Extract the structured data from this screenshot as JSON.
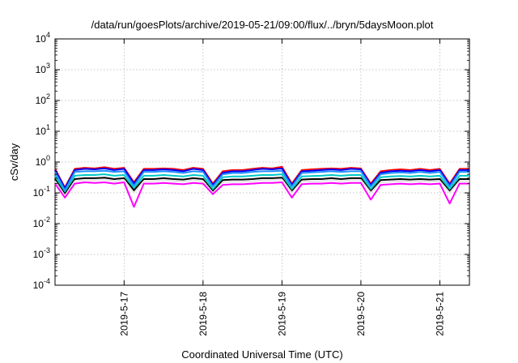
{
  "chart_data": {
    "type": "line",
    "title": "/data/run/goesPlots/archive/2019-05-21/09:00/flux/../bryn/5daysMoon.plot",
    "xlabel": "Coordinated Universal Time (UTC)",
    "ylabel": "cSv/day",
    "yscale": "log",
    "ylim": [
      0.0001,
      10000
    ],
    "xlim": [
      "2019-05-16 03:00",
      "2019-05-21 09:00"
    ],
    "grid": true,
    "y_ticks": [
      {
        "value": 0.0001,
        "base": "10",
        "exp": "-4"
      },
      {
        "value": 0.001,
        "base": "10",
        "exp": "-3"
      },
      {
        "value": 0.01,
        "base": "10",
        "exp": "-2"
      },
      {
        "value": 0.1,
        "base": "10",
        "exp": "-1"
      },
      {
        "value": 1,
        "base": "10",
        "exp": "0"
      },
      {
        "value": 10,
        "base": "10",
        "exp": "1"
      },
      {
        "value": 100,
        "base": "10",
        "exp": "2"
      },
      {
        "value": 1000,
        "base": "10",
        "exp": "3"
      },
      {
        "value": 10000,
        "base": "10",
        "exp": "4"
      }
    ],
    "x_ticks": [
      {
        "value": "2019-05-17",
        "label": "2019-5-17"
      },
      {
        "value": "2019-05-18",
        "label": "2019-5-18"
      },
      {
        "value": "2019-05-19",
        "label": "2019-5-19"
      },
      {
        "value": "2019-05-20",
        "label": "2019-5-20"
      },
      {
        "value": "2019-05-21",
        "label": "2019-5-21"
      }
    ],
    "x": [
      "2019-05-16 03:00",
      "2019-05-16 06:00",
      "2019-05-16 09:00",
      "2019-05-16 12:00",
      "2019-05-16 15:00",
      "2019-05-16 18:00",
      "2019-05-16 21:00",
      "2019-05-17 00:00",
      "2019-05-17 03:00",
      "2019-05-17 06:00",
      "2019-05-17 09:00",
      "2019-05-17 12:00",
      "2019-05-17 15:00",
      "2019-05-17 18:00",
      "2019-05-17 21:00",
      "2019-05-18 00:00",
      "2019-05-18 03:00",
      "2019-05-18 06:00",
      "2019-05-18 09:00",
      "2019-05-18 12:00",
      "2019-05-18 15:00",
      "2019-05-18 18:00",
      "2019-05-18 21:00",
      "2019-05-19 00:00",
      "2019-05-19 03:00",
      "2019-05-19 06:00",
      "2019-05-19 09:00",
      "2019-05-19 12:00",
      "2019-05-19 15:00",
      "2019-05-19 18:00",
      "2019-05-19 21:00",
      "2019-05-20 00:00",
      "2019-05-20 03:00",
      "2019-05-20 06:00",
      "2019-05-20 09:00",
      "2019-05-20 12:00",
      "2019-05-20 15:00",
      "2019-05-20 18:00",
      "2019-05-20 21:00",
      "2019-05-21 00:00",
      "2019-05-21 03:00",
      "2019-05-21 06:00",
      "2019-05-21 09:00"
    ],
    "series": [
      {
        "color": "#ff0000",
        "values": [
          0.6,
          0.15,
          0.6,
          0.65,
          0.62,
          0.68,
          0.6,
          0.65,
          0.22,
          0.6,
          0.6,
          0.62,
          0.6,
          0.55,
          0.65,
          0.6,
          0.2,
          0.5,
          0.55,
          0.55,
          0.6,
          0.65,
          0.62,
          0.7,
          0.2,
          0.55,
          0.58,
          0.6,
          0.62,
          0.6,
          0.65,
          0.62,
          0.2,
          0.5,
          0.55,
          0.58,
          0.55,
          0.6,
          0.55,
          0.6,
          0.2,
          0.6,
          0.6
        ]
      },
      {
        "color": "#0000ff",
        "values": [
          0.55,
          0.14,
          0.55,
          0.6,
          0.58,
          0.62,
          0.55,
          0.6,
          0.2,
          0.55,
          0.55,
          0.58,
          0.55,
          0.5,
          0.6,
          0.55,
          0.18,
          0.45,
          0.5,
          0.5,
          0.55,
          0.6,
          0.58,
          0.62,
          0.18,
          0.5,
          0.52,
          0.55,
          0.58,
          0.55,
          0.6,
          0.58,
          0.18,
          0.45,
          0.5,
          0.52,
          0.5,
          0.55,
          0.5,
          0.55,
          0.18,
          0.55,
          0.55
        ]
      },
      {
        "color": "#1e90ff",
        "values": [
          0.48,
          0.12,
          0.48,
          0.5,
          0.5,
          0.52,
          0.48,
          0.5,
          0.17,
          0.48,
          0.48,
          0.5,
          0.48,
          0.44,
          0.5,
          0.48,
          0.16,
          0.4,
          0.44,
          0.44,
          0.48,
          0.5,
          0.5,
          0.52,
          0.16,
          0.44,
          0.46,
          0.48,
          0.5,
          0.48,
          0.5,
          0.5,
          0.16,
          0.4,
          0.44,
          0.46,
          0.44,
          0.48,
          0.44,
          0.48,
          0.16,
          0.48,
          0.48
        ]
      },
      {
        "color": "#00c8c8",
        "values": [
          0.36,
          0.1,
          0.36,
          0.38,
          0.38,
          0.4,
          0.36,
          0.38,
          0.14,
          0.36,
          0.36,
          0.38,
          0.36,
          0.34,
          0.38,
          0.36,
          0.13,
          0.32,
          0.34,
          0.34,
          0.36,
          0.38,
          0.38,
          0.4,
          0.13,
          0.34,
          0.35,
          0.36,
          0.38,
          0.36,
          0.38,
          0.38,
          0.13,
          0.32,
          0.34,
          0.35,
          0.34,
          0.36,
          0.34,
          0.36,
          0.13,
          0.36,
          0.36
        ]
      },
      {
        "color": "#000000",
        "values": [
          0.28,
          0.09,
          0.28,
          0.3,
          0.3,
          0.31,
          0.28,
          0.3,
          0.12,
          0.28,
          0.28,
          0.3,
          0.28,
          0.27,
          0.3,
          0.28,
          0.11,
          0.26,
          0.27,
          0.27,
          0.28,
          0.3,
          0.3,
          0.31,
          0.11,
          0.27,
          0.28,
          0.28,
          0.3,
          0.28,
          0.3,
          0.3,
          0.11,
          0.26,
          0.27,
          0.28,
          0.27,
          0.28,
          0.27,
          0.28,
          0.11,
          0.28,
          0.28
        ]
      },
      {
        "color": "#e5e5e5",
        "values": [
          0.24,
          0.08,
          0.24,
          0.26,
          0.26,
          0.27,
          0.24,
          0.26,
          0.1,
          0.24,
          0.24,
          0.26,
          0.24,
          0.23,
          0.26,
          0.24,
          0.1,
          0.22,
          0.23,
          0.23,
          0.24,
          0.26,
          0.26,
          0.27,
          0.1,
          0.23,
          0.24,
          0.24,
          0.26,
          0.24,
          0.26,
          0.26,
          0.1,
          0.22,
          0.23,
          0.24,
          0.23,
          0.24,
          0.23,
          0.24,
          0.1,
          0.24,
          0.24
        ]
      },
      {
        "color": "#ff00ff",
        "values": [
          0.2,
          0.07,
          0.2,
          0.22,
          0.21,
          0.22,
          0.2,
          0.22,
          0.035,
          0.2,
          0.2,
          0.21,
          0.2,
          0.19,
          0.21,
          0.2,
          0.09,
          0.18,
          0.19,
          0.19,
          0.2,
          0.21,
          0.21,
          0.22,
          0.07,
          0.19,
          0.2,
          0.2,
          0.21,
          0.2,
          0.21,
          0.21,
          0.06,
          0.18,
          0.19,
          0.2,
          0.19,
          0.2,
          0.19,
          0.2,
          0.045,
          0.2,
          0.2
        ]
      }
    ]
  }
}
